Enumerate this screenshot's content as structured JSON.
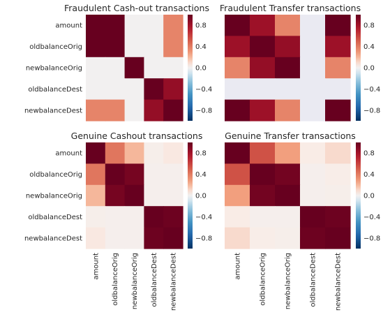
{
  "chart_data": [
    {
      "type": "heatmap",
      "title": "Fraudulent Cash-out transactions",
      "rows": [
        "amount",
        "oldbalanceOrig",
        "newbalanceOrig",
        "oldbalanceDest",
        "newbalanceDest"
      ],
      "columns": [
        "amount",
        "oldbalanceOrig",
        "newbalanceOrig",
        "oldbalanceDest",
        "newbalanceDest"
      ],
      "show_row_labels": true,
      "show_col_labels": false,
      "values": [
        [
          1.0,
          1.0,
          0.0,
          0.0,
          0.37
        ],
        [
          1.0,
          1.0,
          0.0,
          0.0,
          0.37
        ],
        [
          0.0,
          0.0,
          1.0,
          0.0,
          0.0
        ],
        [
          0.0,
          0.0,
          0.0,
          1.0,
          0.85
        ],
        [
          0.37,
          0.37,
          0.0,
          0.85,
          1.0
        ]
      ],
      "colorbar": {
        "min": -1.0,
        "max": 1.0,
        "ticks": [
          "0.8",
          "0.4",
          "0.0",
          "−0.4",
          "−0.8"
        ]
      }
    },
    {
      "type": "heatmap",
      "title": "Fraudulent Transfer transactions",
      "rows": [
        "amount",
        "oldbalanceOrig",
        "newbalanceOrig",
        "oldbalanceDest",
        "newbalanceDest"
      ],
      "columns": [
        "amount",
        "oldbalanceOrig",
        "newbalanceOrig",
        "oldbalanceDest",
        "newbalanceDest"
      ],
      "show_row_labels": false,
      "show_col_labels": false,
      "values": [
        [
          1.0,
          0.82,
          0.37,
          null,
          1.0
        ],
        [
          0.82,
          1.0,
          0.85,
          null,
          0.82
        ],
        [
          0.37,
          0.85,
          1.0,
          null,
          0.37
        ],
        [
          null,
          null,
          null,
          null,
          null
        ],
        [
          1.0,
          0.82,
          0.37,
          null,
          1.0
        ]
      ],
      "colorbar": {
        "min": -1.0,
        "max": 1.0,
        "ticks": [
          "0.8",
          "0.4",
          "0.0",
          "−0.4",
          "−0.8"
        ]
      }
    },
    {
      "type": "heatmap",
      "title": "Genuine Cashout transactions",
      "rows": [
        "amount",
        "oldbalanceOrig",
        "newbalanceOrig",
        "oldbalanceDest",
        "newbalanceDest"
      ],
      "columns": [
        "amount",
        "oldbalanceOrig",
        "newbalanceOrig",
        "oldbalanceDest",
        "newbalanceDest"
      ],
      "show_row_labels": true,
      "show_col_labels": true,
      "values": [
        [
          1.0,
          0.42,
          0.2,
          0.03,
          0.06
        ],
        [
          0.42,
          1.0,
          0.95,
          0.02,
          0.02
        ],
        [
          0.2,
          0.95,
          1.0,
          0.02,
          0.02
        ],
        [
          0.03,
          0.02,
          0.02,
          1.0,
          0.98
        ],
        [
          0.06,
          0.02,
          0.02,
          0.98,
          1.0
        ]
      ],
      "colorbar": {
        "min": -1.0,
        "max": 1.0,
        "ticks": [
          "0.8",
          "0.4",
          "0.0",
          "−0.4",
          "−0.8"
        ]
      }
    },
    {
      "type": "heatmap",
      "title": "Genuine Transfer transactions",
      "rows": [
        "amount",
        "oldbalanceOrig",
        "newbalanceOrig",
        "oldbalanceDest",
        "newbalanceDest"
      ],
      "columns": [
        "amount",
        "oldbalanceOrig",
        "newbalanceOrig",
        "oldbalanceDest",
        "newbalanceDest"
      ],
      "show_row_labels": false,
      "show_col_labels": true,
      "values": [
        [
          1.0,
          0.55,
          0.27,
          0.05,
          0.1
        ],
        [
          0.55,
          1.0,
          0.96,
          0.02,
          0.04
        ],
        [
          0.27,
          0.96,
          1.0,
          0.02,
          0.03
        ],
        [
          0.05,
          0.02,
          0.02,
          1.0,
          0.98
        ],
        [
          0.1,
          0.04,
          0.03,
          0.98,
          1.0
        ]
      ],
      "colorbar": {
        "min": -1.0,
        "max": 1.0,
        "ticks": [
          "0.8",
          "0.4",
          "0.0",
          "−0.4",
          "−0.8"
        ]
      }
    }
  ]
}
